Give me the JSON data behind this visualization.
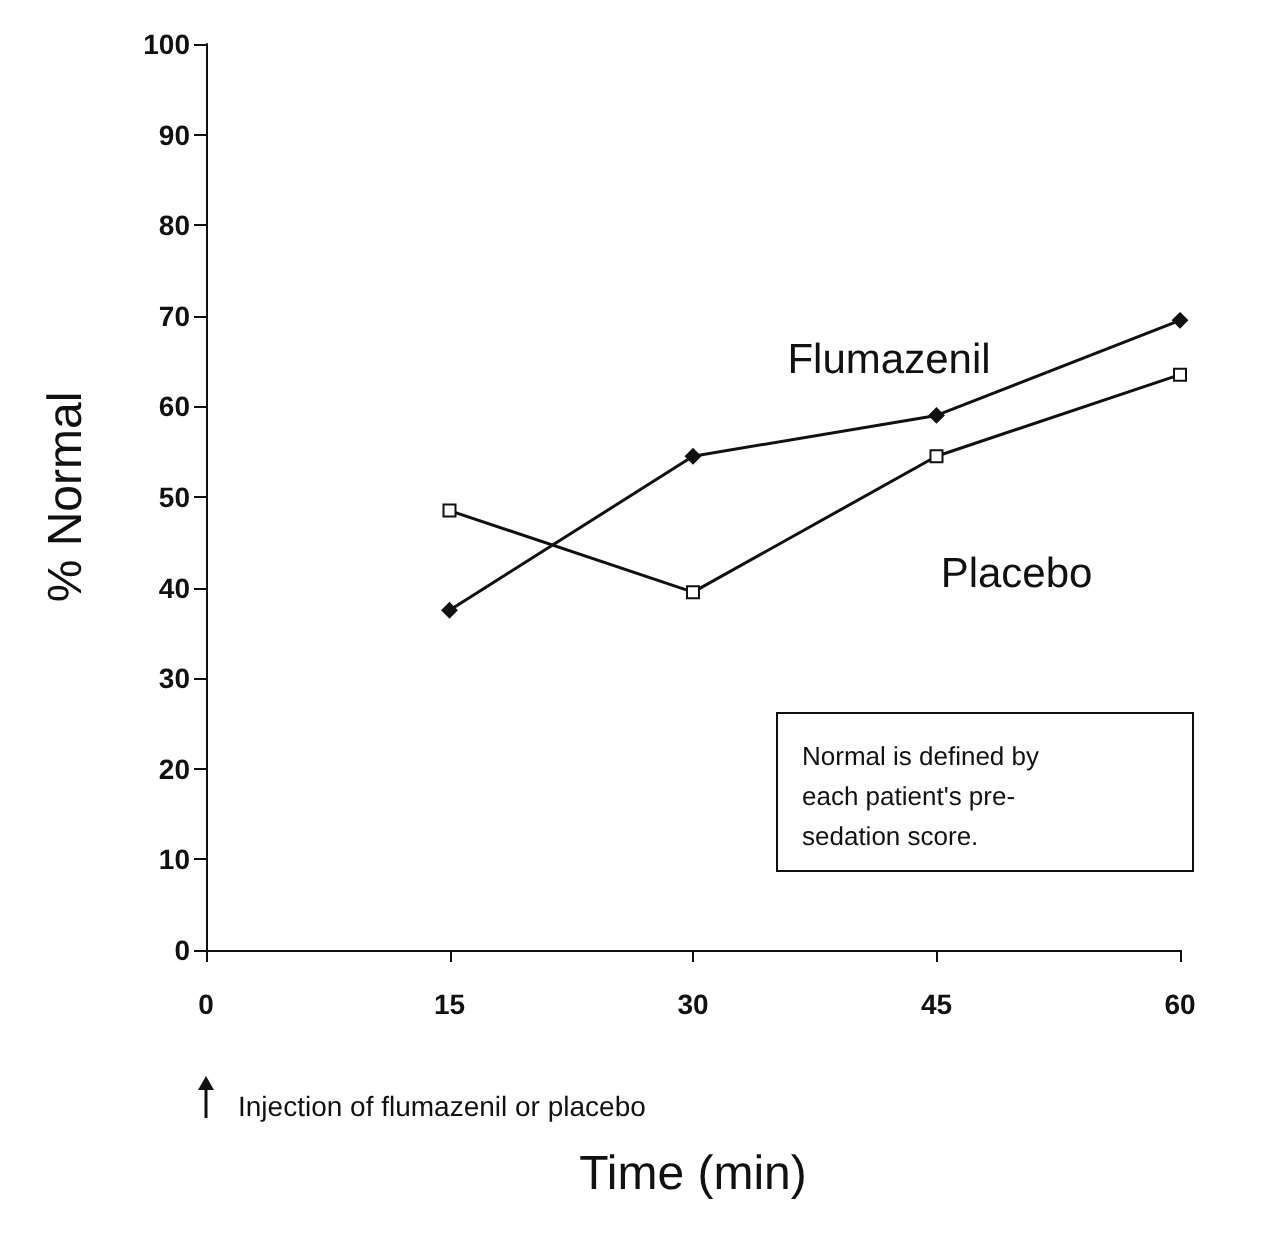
{
  "chart_data": {
    "type": "line",
    "xlabel": "Time (min)",
    "ylabel": "% Normal",
    "x": [
      15,
      30,
      45,
      60
    ],
    "series": [
      {
        "name": "Flumazenil",
        "color": "#111111",
        "marker": "diamond",
        "values": [
          37.5,
          54.5,
          59,
          69.5
        ]
      },
      {
        "name": "Placebo",
        "color": "#111111",
        "marker": "square",
        "values": [
          48.5,
          39.5,
          54.5,
          63.5
        ]
      }
    ],
    "xlim": [
      0,
      60
    ],
    "xticks": [
      0,
      15,
      30,
      45,
      60
    ],
    "ylim": [
      0,
      100
    ],
    "yticks": [
      0,
      10,
      20,
      30,
      40,
      50,
      60,
      70,
      80,
      90,
      100
    ],
    "grid": false,
    "legend": false,
    "line_style": "solid",
    "annotations": [
      "Normal is defined by\neach patient's pre-\nsedation score.",
      "Injection of flumazenil or placebo"
    ]
  }
}
